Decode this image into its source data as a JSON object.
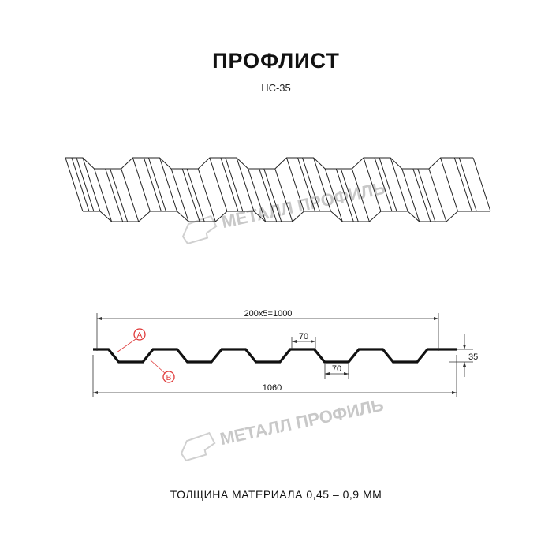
{
  "header": {
    "title": "ПРОФЛИСТ",
    "subtitle": "НС-35"
  },
  "watermark": {
    "text": "МЕТАЛЛ ПРОФИЛЬ"
  },
  "drawing": {
    "pitch_label": "200x5=1000",
    "crest_width_label": "70",
    "valley_width_label": "70",
    "height_label": "35",
    "total_width_label": "1060",
    "callout_a": "A",
    "callout_b": "B",
    "callout_color": "#e03a3a"
  },
  "footer": {
    "thickness_text": "ТОЛЩИНА МАТЕРИАЛА 0,45 – 0,9 ММ"
  }
}
